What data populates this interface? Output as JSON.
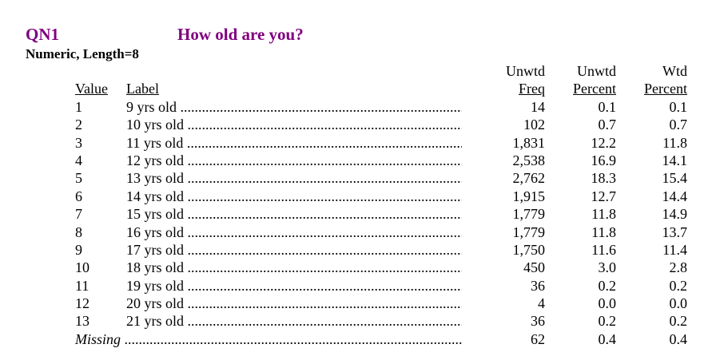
{
  "header": {
    "question_id": "QN1",
    "question_text": "How old are you?",
    "variable_type": "Numeric, Length=8",
    "title_color": "#800080"
  },
  "columns": {
    "value": "Value",
    "label": "Label",
    "freq_top": "Unwtd",
    "freq_bottom": "Freq",
    "unwtd_pct_top": "Unwtd",
    "unwtd_pct_bottom": "Percent",
    "wtd_pct_top": "Wtd",
    "wtd_pct_bottom": "Percent"
  },
  "rows": [
    {
      "value": "1",
      "label": "9 yrs old",
      "freq": "14",
      "unwtd_pct": "0.1",
      "wtd_pct": "0.1"
    },
    {
      "value": "2",
      "label": "10 yrs old",
      "freq": "102",
      "unwtd_pct": "0.7",
      "wtd_pct": "0.7"
    },
    {
      "value": "3",
      "label": "11 yrs old",
      "freq": "1,831",
      "unwtd_pct": "12.2",
      "wtd_pct": "11.8"
    },
    {
      "value": "4",
      "label": "12 yrs old",
      "freq": "2,538",
      "unwtd_pct": "16.9",
      "wtd_pct": "14.1"
    },
    {
      "value": "5",
      "label": "13 yrs old",
      "freq": "2,762",
      "unwtd_pct": "18.3",
      "wtd_pct": "15.4"
    },
    {
      "value": "6",
      "label": "14 yrs old",
      "freq": "1,915",
      "unwtd_pct": "12.7",
      "wtd_pct": "14.4"
    },
    {
      "value": "7",
      "label": "15 yrs old",
      "freq": "1,779",
      "unwtd_pct": "11.8",
      "wtd_pct": "14.9"
    },
    {
      "value": "8",
      "label": "16 yrs old",
      "freq": "1,779",
      "unwtd_pct": "11.8",
      "wtd_pct": "13.7"
    },
    {
      "value": "9",
      "label": "17 yrs old",
      "freq": "1,750",
      "unwtd_pct": "11.6",
      "wtd_pct": "11.4"
    },
    {
      "value": "10",
      "label": "18 yrs old",
      "freq": "450",
      "unwtd_pct": "3.0",
      "wtd_pct": "2.8"
    },
    {
      "value": "11",
      "label": "19 yrs old",
      "freq": "36",
      "unwtd_pct": "0.2",
      "wtd_pct": "0.2"
    },
    {
      "value": "12",
      "label": "20 yrs old",
      "freq": "4",
      "unwtd_pct": "0.0",
      "wtd_pct": "0.0"
    },
    {
      "value": "13",
      "label": "21 yrs old",
      "freq": "36",
      "unwtd_pct": "0.2",
      "wtd_pct": "0.2"
    }
  ],
  "missing": {
    "label": "Missing",
    "freq": "62",
    "unwtd_pct": "0.4",
    "wtd_pct": "0.4"
  }
}
